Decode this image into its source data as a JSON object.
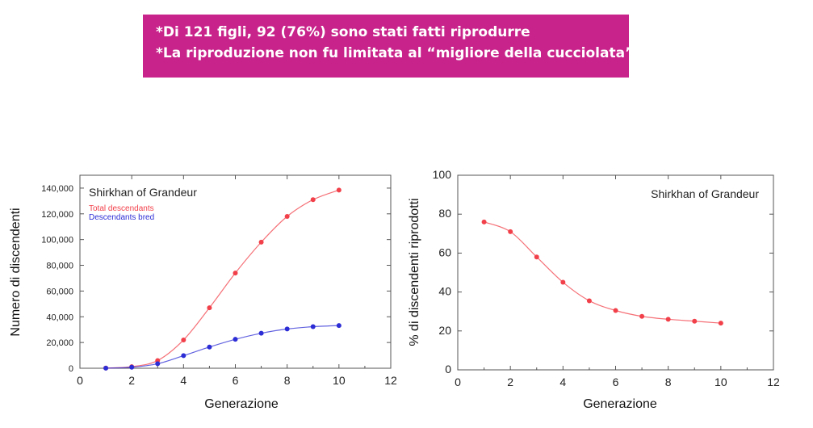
{
  "banner": {
    "line1": "*Di 121 figli, 92 (76%) sono stati fatti riprodurre",
    "line2": "*La riproduzione non fu limitata al “migliore della cucciolata”"
  },
  "colors": {
    "banner": "#c8238a",
    "total": "#f2404a",
    "bred": "#2d2dd6"
  },
  "chart_data": [
    {
      "type": "line",
      "title": "Shirkhan of Grandeur",
      "xlabel": "Generazione",
      "ylabel": "Numero di discendenti",
      "xlim": [
        0,
        12
      ],
      "ylim": [
        0,
        150000
      ],
      "xticks": [
        0,
        2,
        4,
        6,
        8,
        10,
        12
      ],
      "xtick_labels": [
        "0",
        "2",
        "4",
        "6",
        "8",
        "10",
        "12"
      ],
      "yticks": [
        0,
        20000,
        40000,
        60000,
        80000,
        100000,
        120000,
        140000
      ],
      "ytick_labels": [
        "0",
        "20,000",
        "40,000",
        "60,000",
        "80,000",
        "100,000",
        "120,000",
        "140,000"
      ],
      "legend_position": "top-left",
      "series": [
        {
          "name": "Total descendants",
          "color": "#f2404a",
          "x": [
            1,
            2,
            3,
            4,
            5,
            6,
            7,
            8,
            9,
            10
          ],
          "y": [
            120,
            1200,
            6000,
            22000,
            47000,
            74000,
            98000,
            118000,
            131000,
            138500
          ]
        },
        {
          "name": "Descendants bred",
          "color": "#2d2dd6",
          "x": [
            1,
            2,
            3,
            4,
            5,
            6,
            7,
            8,
            9,
            10
          ],
          "y": [
            92,
            800,
            3500,
            9800,
            16500,
            22500,
            27200,
            30500,
            32300,
            33200
          ]
        }
      ]
    },
    {
      "type": "line",
      "title": "Shirkhan of Grandeur",
      "xlabel": "Generazione",
      "ylabel": "% di discendenti riprodotti",
      "xlim": [
        0,
        12
      ],
      "ylim": [
        0,
        100
      ],
      "xticks": [
        0,
        2,
        4,
        6,
        8,
        10,
        12
      ],
      "xtick_labels": [
        "0",
        "2",
        "4",
        "6",
        "8",
        "10",
        "12"
      ],
      "yticks": [
        0,
        20,
        40,
        60,
        80,
        100
      ],
      "ytick_labels": [
        "0",
        "20",
        "40",
        "60",
        "80",
        "100"
      ],
      "legend_position": "top-right",
      "series": [
        {
          "color": "#f2404a",
          "x": [
            1,
            2,
            3,
            4,
            5,
            6,
            7,
            8,
            9,
            10
          ],
          "y": [
            76,
            71,
            58,
            45,
            35.5,
            30.5,
            27.5,
            26,
            25,
            24
          ]
        }
      ]
    }
  ]
}
